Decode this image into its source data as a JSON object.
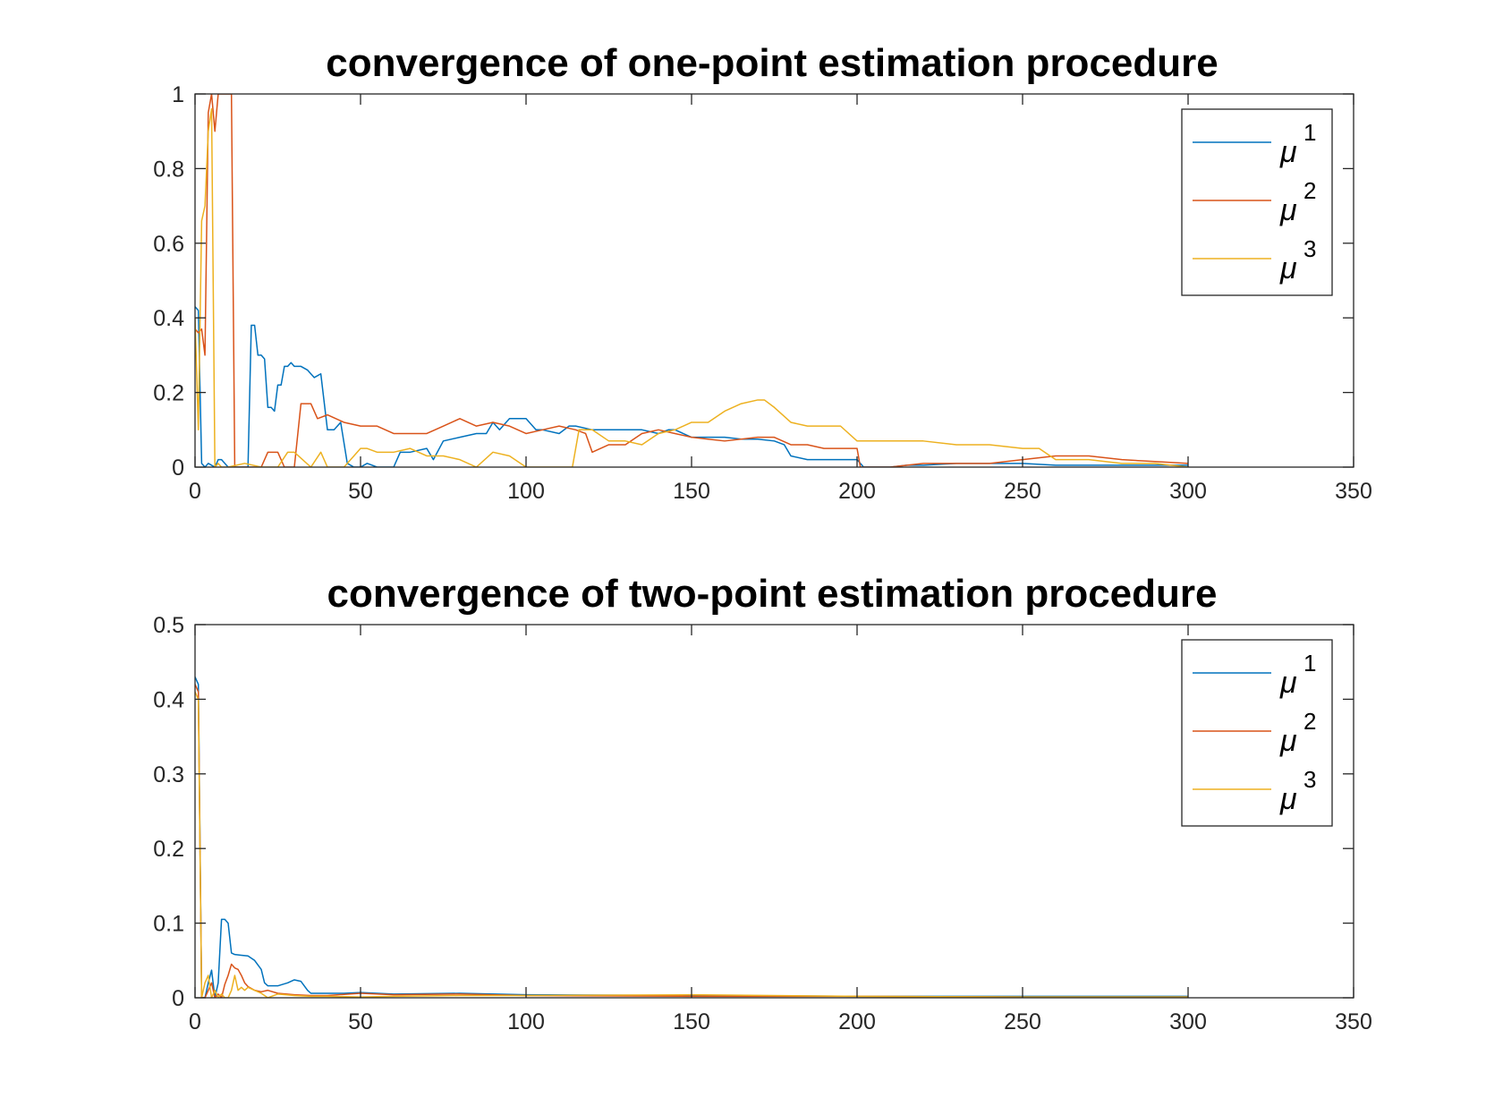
{
  "chart_data": [
    {
      "type": "line",
      "title": "convergence of one-point estimation procedure",
      "xlabel": "",
      "ylabel": "",
      "xlim": [
        0,
        350
      ],
      "ylim": [
        0,
        1
      ],
      "xticks": [
        0,
        50,
        100,
        150,
        200,
        250,
        300,
        350
      ],
      "yticks": [
        0,
        0.2,
        0.4,
        0.6,
        0.8,
        1
      ],
      "xtick_labels": [
        "0",
        "50",
        "100",
        "150",
        "200",
        "250",
        "300",
        "350"
      ],
      "ytick_labels": [
        "0",
        "0.2",
        "0.4",
        "0.6",
        "0.8",
        "1"
      ],
      "legend_position": "top-right",
      "series": [
        {
          "name": "μ",
          "sup": "1",
          "color": "#0072BD",
          "x": [
            0,
            1,
            2,
            3,
            4,
            6,
            7,
            8,
            10,
            12,
            14,
            16,
            17,
            18,
            19,
            20,
            21,
            22,
            23,
            24,
            25,
            26,
            27,
            28,
            29,
            30,
            32,
            34,
            36,
            38,
            40,
            42,
            44,
            46,
            48,
            50,
            52,
            55,
            60,
            62,
            65,
            70,
            72,
            75,
            80,
            85,
            88,
            90,
            92,
            95,
            100,
            103,
            105,
            110,
            113,
            115,
            120,
            125,
            130,
            135,
            140,
            143,
            145,
            150,
            155,
            160,
            165,
            170,
            175,
            178,
            180,
            185,
            190,
            195,
            200,
            202,
            205,
            210,
            215,
            220,
            230,
            240,
            250,
            260,
            270,
            280,
            290,
            300
          ],
          "values": [
            0.43,
            0.42,
            0.01,
            0.0,
            0.01,
            0.0,
            0.02,
            0.02,
            0.0,
            0.0,
            0.0,
            0.0,
            0.38,
            0.38,
            0.3,
            0.3,
            0.29,
            0.16,
            0.16,
            0.15,
            0.22,
            0.22,
            0.27,
            0.27,
            0.28,
            0.27,
            0.27,
            0.26,
            0.24,
            0.25,
            0.1,
            0.1,
            0.12,
            0.01,
            0.0,
            0.0,
            0.01,
            0.0,
            0.0,
            0.04,
            0.04,
            0.05,
            0.02,
            0.07,
            0.08,
            0.09,
            0.09,
            0.12,
            0.1,
            0.13,
            0.13,
            0.1,
            0.1,
            0.09,
            0.11,
            0.11,
            0.1,
            0.1,
            0.1,
            0.1,
            0.09,
            0.1,
            0.1,
            0.08,
            0.08,
            0.08,
            0.075,
            0.075,
            0.07,
            0.06,
            0.03,
            0.02,
            0.02,
            0.02,
            0.02,
            0.0,
            0.0,
            0.0,
            0.005,
            0.005,
            0.01,
            0.01,
            0.01,
            0.005,
            0.005,
            0.005,
            0.005,
            0.005
          ]
        },
        {
          "name": "μ",
          "sup": "2",
          "color": "#D95319",
          "x": [
            0,
            1,
            2,
            3,
            4,
            5,
            6,
            7,
            8,
            9,
            10,
            11,
            12,
            13,
            15,
            20,
            22,
            25,
            27,
            30,
            32,
            35,
            37,
            40,
            45,
            50,
            55,
            60,
            65,
            70,
            75,
            80,
            85,
            90,
            95,
            100,
            105,
            110,
            115,
            118,
            120,
            125,
            130,
            135,
            140,
            145,
            150,
            155,
            160,
            170,
            175,
            180,
            185,
            190,
            195,
            200,
            201,
            210,
            220,
            230,
            240,
            250,
            260,
            270,
            280,
            290,
            300
          ],
          "values": [
            0.37,
            0.36,
            0.37,
            0.3,
            0.95,
            1.0,
            0.9,
            1.0,
            1.0,
            1.0,
            1.0,
            1.0,
            0.0,
            0.0,
            0.0,
            0.0,
            0.04,
            0.04,
            0.0,
            0.0,
            0.17,
            0.17,
            0.13,
            0.14,
            0.12,
            0.11,
            0.11,
            0.09,
            0.09,
            0.09,
            0.11,
            0.13,
            0.11,
            0.12,
            0.11,
            0.09,
            0.1,
            0.11,
            0.1,
            0.09,
            0.04,
            0.06,
            0.06,
            0.09,
            0.1,
            0.09,
            0.08,
            0.075,
            0.07,
            0.08,
            0.08,
            0.06,
            0.06,
            0.05,
            0.05,
            0.05,
            0.0,
            0.0,
            0.01,
            0.01,
            0.01,
            0.02,
            0.03,
            0.03,
            0.02,
            0.015,
            0.01
          ]
        },
        {
          "name": "μ",
          "sup": "3",
          "color": "#EDB120",
          "x": [
            0,
            1,
            2,
            3,
            4,
            5,
            6,
            7,
            8,
            10,
            15,
            20,
            25,
            28,
            30,
            35,
            38,
            40,
            45,
            50,
            52,
            55,
            60,
            65,
            70,
            75,
            80,
            85,
            90,
            95,
            100,
            110,
            114,
            116,
            120,
            125,
            130,
            135,
            140,
            145,
            150,
            155,
            160,
            165,
            170,
            172,
            175,
            180,
            185,
            190,
            195,
            200,
            205,
            210,
            220,
            230,
            240,
            250,
            255,
            260,
            270,
            280,
            290,
            300
          ],
          "values": [
            0.4,
            0.1,
            0.66,
            0.7,
            0.9,
            0.96,
            0.0,
            0.01,
            0.0,
            0.0,
            0.01,
            0.0,
            0.0,
            0.04,
            0.04,
            0.0,
            0.04,
            0.0,
            0.0,
            0.05,
            0.05,
            0.04,
            0.04,
            0.05,
            0.03,
            0.03,
            0.02,
            0.0,
            0.04,
            0.03,
            0.0,
            0.0,
            0.0,
            0.1,
            0.1,
            0.07,
            0.07,
            0.06,
            0.09,
            0.1,
            0.12,
            0.12,
            0.15,
            0.17,
            0.18,
            0.18,
            0.16,
            0.12,
            0.11,
            0.11,
            0.11,
            0.07,
            0.07,
            0.07,
            0.07,
            0.06,
            0.06,
            0.05,
            0.05,
            0.02,
            0.02,
            0.01,
            0.01,
            0.0
          ]
        }
      ]
    },
    {
      "type": "line",
      "title": "convergence of two-point estimation procedure",
      "xlabel": "",
      "ylabel": "",
      "xlim": [
        0,
        350
      ],
      "ylim": [
        0,
        0.5
      ],
      "xticks": [
        0,
        50,
        100,
        150,
        200,
        250,
        300,
        350
      ],
      "yticks": [
        0,
        0.1,
        0.2,
        0.3,
        0.4,
        0.5
      ],
      "xtick_labels": [
        "0",
        "50",
        "100",
        "150",
        "200",
        "250",
        "300",
        "350"
      ],
      "ytick_labels": [
        "0",
        "0.1",
        "0.2",
        "0.3",
        "0.4",
        "0.5"
      ],
      "legend_position": "top-right",
      "series": [
        {
          "name": "μ",
          "sup": "1",
          "color": "#0072BD",
          "x": [
            0,
            1,
            2,
            3,
            4,
            5,
            6,
            7,
            8,
            9,
            10,
            11,
            12,
            14,
            16,
            18,
            20,
            21,
            22,
            25,
            28,
            30,
            32,
            34,
            35,
            40,
            45,
            50,
            60,
            80,
            100,
            150,
            200,
            250,
            300
          ],
          "values": [
            0.43,
            0.42,
            0.0,
            0.0,
            0.02,
            0.037,
            0.0,
            0.02,
            0.105,
            0.105,
            0.1,
            0.06,
            0.058,
            0.057,
            0.056,
            0.05,
            0.038,
            0.02,
            0.016,
            0.016,
            0.02,
            0.024,
            0.022,
            0.01,
            0.006,
            0.006,
            0.006,
            0.007,
            0.005,
            0.006,
            0.004,
            0.003,
            0.002,
            0.002,
            0.002
          ]
        },
        {
          "name": "μ",
          "sup": "2",
          "color": "#D95319",
          "x": [
            0,
            1,
            2,
            3,
            4,
            5,
            6,
            7,
            8,
            9,
            10,
            11,
            12,
            13,
            14,
            15,
            16,
            18,
            20,
            22,
            25,
            30,
            35,
            40,
            50,
            60,
            80,
            100,
            150,
            200,
            250,
            300
          ],
          "values": [
            0.42,
            0.41,
            0.0,
            0.0,
            0.01,
            0.02,
            0.0,
            0.005,
            0.0,
            0.018,
            0.03,
            0.045,
            0.04,
            0.038,
            0.03,
            0.02,
            0.015,
            0.01,
            0.008,
            0.01,
            0.006,
            0.004,
            0.003,
            0.003,
            0.006,
            0.004,
            0.005,
            0.003,
            0.002,
            0.002,
            0.001,
            0.001
          ]
        },
        {
          "name": "μ",
          "sup": "3",
          "color": "#EDB120",
          "x": [
            0,
            1,
            2,
            3,
            4,
            5,
            6,
            7,
            8,
            9,
            10,
            11,
            12,
            13,
            14,
            15,
            16,
            18,
            20,
            22,
            25,
            30,
            35,
            40,
            50,
            60,
            80,
            100,
            150,
            200,
            250,
            300
          ],
          "values": [
            0.41,
            0.4,
            0.0,
            0.02,
            0.03,
            0.0,
            0.01,
            0.0,
            0.005,
            0.0,
            0.0,
            0.01,
            0.03,
            0.01,
            0.014,
            0.01,
            0.014,
            0.01,
            0.006,
            0.0,
            0.005,
            0.003,
            0.002,
            0.002,
            0.001,
            0.002,
            0.003,
            0.003,
            0.004,
            0.002,
            0.001,
            0.001
          ]
        }
      ]
    }
  ]
}
